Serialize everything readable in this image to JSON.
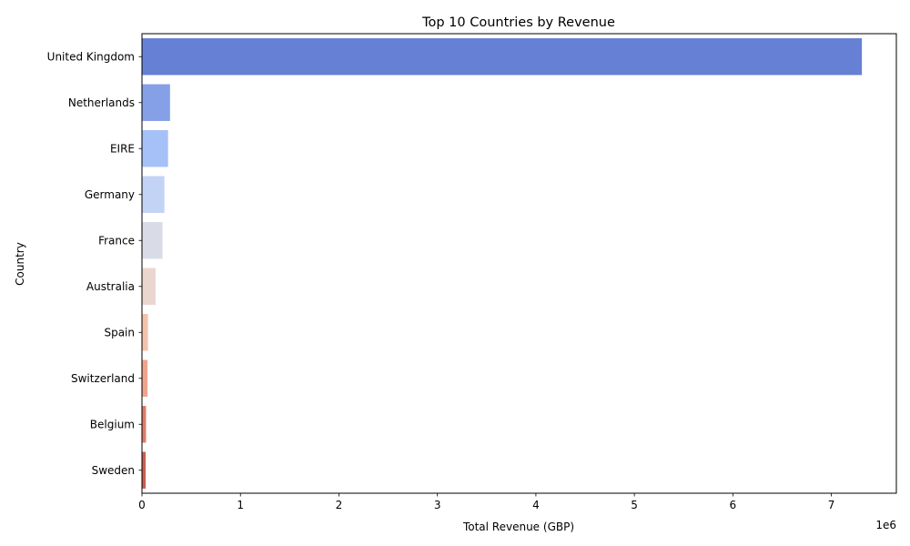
{
  "chart_data": {
    "type": "bar",
    "orientation": "horizontal",
    "title": "Top 10 Countries by Revenue",
    "xlabel": "Total Revenue (GBP)",
    "ylabel": "Country",
    "x_offset_label": "1e6",
    "xlim": [
      0,
      7.66
    ],
    "x_ticks": [
      0,
      1,
      2,
      3,
      4,
      5,
      6,
      7
    ],
    "x_tick_labels": [
      "0",
      "1",
      "2",
      "3",
      "4",
      "5",
      "6",
      "7"
    ],
    "grid": false,
    "categories": [
      "United Kingdom",
      "Netherlands",
      "EIRE",
      "Germany",
      "France",
      "Australia",
      "Spain",
      "Switzerland",
      "Belgium",
      "Sweden"
    ],
    "values": [
      7.31,
      0.285,
      0.265,
      0.228,
      0.209,
      0.138,
      0.061,
      0.057,
      0.041,
      0.038
    ],
    "colors": [
      "#6580d4",
      "#86a0e8",
      "#a6c0f8",
      "#c3d3f5",
      "#d9dce6",
      "#ead6cf",
      "#f3c2ab",
      "#eea58b",
      "#de7c66",
      "#c95f52"
    ]
  }
}
